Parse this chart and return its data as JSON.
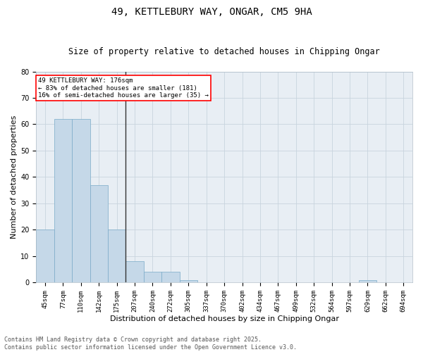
{
  "title": "49, KETTLEBURY WAY, ONGAR, CM5 9HA",
  "subtitle": "Size of property relative to detached houses in Chipping Ongar",
  "xlabel": "Distribution of detached houses by size in Chipping Ongar",
  "ylabel": "Number of detached properties",
  "categories": [
    "45sqm",
    "77sqm",
    "110sqm",
    "142sqm",
    "175sqm",
    "207sqm",
    "240sqm",
    "272sqm",
    "305sqm",
    "337sqm",
    "370sqm",
    "402sqm",
    "434sqm",
    "467sqm",
    "499sqm",
    "532sqm",
    "564sqm",
    "597sqm",
    "629sqm",
    "662sqm",
    "694sqm"
  ],
  "values": [
    20,
    62,
    62,
    37,
    20,
    8,
    4,
    4,
    1,
    0,
    0,
    0,
    0,
    0,
    0,
    0,
    0,
    0,
    1,
    0,
    0
  ],
  "bar_color": "#c5d8e8",
  "bar_edge_color": "#7aaac8",
  "vline_index": 4.5,
  "vline_color": "#333333",
  "annotation_line1": "49 KETTLEBURY WAY: 176sqm",
  "annotation_line2": "← 83% of detached houses are smaller (181)",
  "annotation_line3": "16% of semi-detached houses are larger (35) →",
  "box_edge_color": "red",
  "ylim": [
    0,
    80
  ],
  "yticks": [
    0,
    10,
    20,
    30,
    40,
    50,
    60,
    70,
    80
  ],
  "grid_color": "#c8d4de",
  "bg_color": "#e8eef4",
  "footer_line1": "Contains HM Land Registry data © Crown copyright and database right 2025.",
  "footer_line2": "Contains public sector information licensed under the Open Government Licence v3.0.",
  "title_fontsize": 10,
  "subtitle_fontsize": 8.5,
  "axis_label_fontsize": 8,
  "tick_fontsize": 6.5,
  "footer_fontsize": 6,
  "annotation_fontsize": 6.5
}
